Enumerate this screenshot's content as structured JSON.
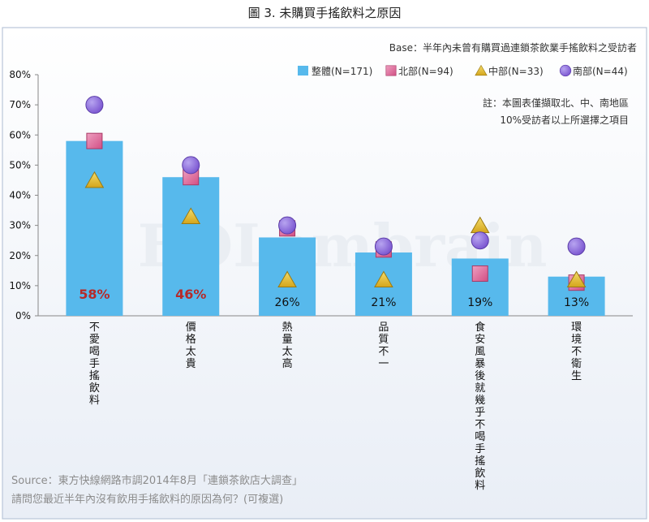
{
  "chart_data": {
    "type": "bar",
    "title": "圖 3. 未購買手搖飲料之原因",
    "base_note": "Base：半年內未曾有購買過連鎖茶飲業手搖飲料之受訪者",
    "note_lines": [
      "註：本圖表僅擷取北、中、南地區",
      "10%受訪者以上所選擇之項目"
    ],
    "source": "Source：東方快線網路市調2014年8月「連鎖茶飲店大調查」",
    "question": "請問您最近半年內沒有飲用手搖飲料的原因為何？(可複選)",
    "watermark": "EOLembrain",
    "categories": [
      "不愛喝手搖飲料",
      "價格太貴",
      "熱量太高",
      "品質不一",
      "食安風暴後就幾乎不喝手搖飲料",
      "環境不衛生"
    ],
    "ylim": [
      0,
      80
    ],
    "yticks": [
      "0%",
      "10%",
      "20%",
      "30%",
      "40%",
      "50%",
      "60%",
      "70%",
      "80%"
    ],
    "grid": false,
    "legend_position": "top-right",
    "series": [
      {
        "name": "整體(N=171)",
        "kind": "bar",
        "color": "#57b9ec",
        "values": [
          58,
          46,
          26,
          21,
          19,
          13
        ],
        "labels": [
          "58%",
          "46%",
          "26%",
          "21%",
          "19%",
          "13%"
        ]
      },
      {
        "name": "北部(N=94)",
        "kind": "square",
        "color": "#d95588",
        "values": [
          58,
          46,
          29,
          22,
          14,
          11
        ]
      },
      {
        "name": "中部(N=33)",
        "kind": "triangle",
        "color": "#e8c02e",
        "values": [
          45,
          33,
          12,
          12,
          30,
          12
        ]
      },
      {
        "name": "南部(N=44)",
        "kind": "circle",
        "color": "#8f6fd8",
        "values": [
          70,
          50,
          30,
          23,
          25,
          23
        ]
      }
    ]
  }
}
